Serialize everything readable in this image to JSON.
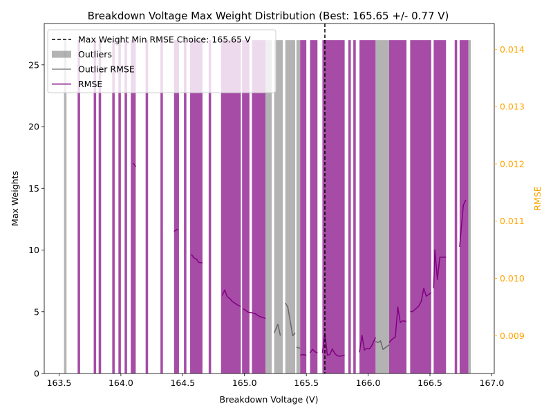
{
  "chart_data": {
    "type": "bar",
    "title": "Breakdown Voltage Max Weight Distribution (Best: 165.65 +/- 0.77 V)",
    "xlabel": "Breakdown Voltage (V)",
    "ylabel": "Max Weights",
    "y2label": "RMSE",
    "xlim": [
      163.38,
      167.02
    ],
    "ylim": [
      0,
      28.35
    ],
    "y2lim": [
      0.00834,
      0.01445
    ],
    "xticks": [
      "163.5",
      "164.0",
      "164.5",
      "165.0",
      "165.5",
      "166.0",
      "166.5",
      "167.0"
    ],
    "yticks": [
      "0",
      "5",
      "10",
      "15",
      "20",
      "25"
    ],
    "y2ticks": [
      "0.009",
      "0.010",
      "0.011",
      "0.012",
      "0.013",
      "0.014"
    ],
    "best_choice_x": 165.65,
    "colors": {
      "bars": "#800080",
      "outliers": "#808080",
      "rmse": "#800080",
      "outlier_rmse": "#666666",
      "best_line": "#000000",
      "y2_axis": "#ffa500"
    },
    "legend": {
      "placement": "top-left",
      "entries": [
        {
          "label": "Max Weight Min RMSE Choice: 165.65 V",
          "style": "dashed-line"
        },
        {
          "label": "Outliers",
          "style": "gray-bar"
        },
        {
          "label": "Outlier RMSE",
          "style": "gray-line"
        },
        {
          "label": "RMSE",
          "style": "purple-line"
        }
      ]
    },
    "bars_height": 27,
    "series": [
      {
        "name": "Max Weights",
        "intervals": [
          [
            163.65,
            163.67
          ],
          [
            163.78,
            163.8
          ],
          [
            163.82,
            163.84
          ],
          [
            163.93,
            163.95
          ],
          [
            163.98,
            164.0
          ],
          [
            164.03,
            164.05
          ],
          [
            164.08,
            164.12
          ],
          [
            164.2,
            164.22
          ],
          [
            164.32,
            164.34
          ],
          [
            164.43,
            164.47
          ],
          [
            164.51,
            164.53
          ],
          [
            164.56,
            164.66
          ],
          [
            164.71,
            164.73
          ],
          [
            164.81,
            164.97
          ],
          [
            164.98,
            165.04
          ],
          [
            165.06,
            165.17
          ],
          [
            165.45,
            165.5
          ],
          [
            165.53,
            165.59
          ],
          [
            165.63,
            165.81
          ],
          [
            165.84,
            165.86
          ],
          [
            165.88,
            165.9
          ],
          [
            165.93,
            166.06
          ],
          [
            166.17,
            166.31
          ],
          [
            166.34,
            166.51
          ],
          [
            166.53,
            166.63
          ],
          [
            166.7,
            166.72
          ],
          [
            166.74,
            166.81
          ]
        ]
      },
      {
        "name": "Outliers",
        "intervals": [
          [
            163.54,
            163.56
          ],
          [
            165.17,
            165.22
          ],
          [
            165.24,
            165.31
          ],
          [
            165.33,
            165.41
          ],
          [
            165.42,
            165.45
          ],
          [
            166.06,
            166.17
          ],
          [
            166.81,
            166.83
          ]
        ]
      },
      {
        "name": "RMSE",
        "segments": [
          [
            [
              164.1,
              0.01201
            ],
            [
              164.12,
              0.01195
            ]
          ],
          [
            [
              164.43,
              0.01082
            ],
            [
              164.46,
              0.01086
            ]
          ],
          [
            [
              164.57,
              0.01042
            ],
            [
              164.59,
              0.01036
            ],
            [
              164.61,
              0.01034
            ],
            [
              164.63,
              0.01028
            ],
            [
              164.66,
              0.01027
            ]
          ],
          [
            [
              164.82,
              0.0097
            ],
            [
              164.84,
              0.0098
            ],
            [
              164.86,
              0.00968
            ],
            [
              164.88,
              0.00965
            ],
            [
              164.9,
              0.0096
            ],
            [
              164.92,
              0.00957
            ],
            [
              164.94,
              0.00954
            ],
            [
              164.97,
              0.00951
            ]
          ],
          [
            [
              164.99,
              0.00947
            ],
            [
              165.01,
              0.00944
            ],
            [
              165.03,
              0.00941
            ],
            [
              165.06,
              0.0094
            ],
            [
              165.09,
              0.00938
            ],
            [
              165.11,
              0.00935
            ],
            [
              165.13,
              0.00933
            ],
            [
              165.17,
              0.0093
            ]
          ],
          [
            [
              165.45,
              0.00866
            ],
            [
              165.47,
              0.00867
            ],
            [
              165.5,
              0.00866
            ]
          ],
          [
            [
              165.53,
              0.0087
            ],
            [
              165.55,
              0.00876
            ],
            [
              165.57,
              0.00872
            ],
            [
              165.59,
              0.0087
            ]
          ],
          [
            [
              165.63,
              0.0087
            ],
            [
              165.65,
              0.00904
            ],
            [
              165.67,
              0.00866
            ],
            [
              165.69,
              0.00867
            ],
            [
              165.71,
              0.00877
            ],
            [
              165.73,
              0.00869
            ],
            [
              165.75,
              0.00865
            ],
            [
              165.77,
              0.00864
            ],
            [
              165.79,
              0.00865
            ],
            [
              165.81,
              0.00866
            ]
          ],
          [
            [
              165.93,
              0.00871
            ],
            [
              165.95,
              0.00901
            ],
            [
              165.97,
              0.00875
            ],
            [
              165.99,
              0.00878
            ],
            [
              166.01,
              0.00877
            ],
            [
              166.03,
              0.00883
            ],
            [
              166.06,
              0.00897
            ]
          ],
          [
            [
              166.17,
              0.00888
            ],
            [
              166.19,
              0.00893
            ],
            [
              166.22,
              0.00898
            ],
            [
              166.24,
              0.0095
            ],
            [
              166.26,
              0.00923
            ],
            [
              166.28,
              0.00926
            ],
            [
              166.31,
              0.00925
            ]
          ],
          [
            [
              166.34,
              0.00942
            ],
            [
              166.36,
              0.00942
            ],
            [
              166.38,
              0.00946
            ],
            [
              166.41,
              0.00952
            ],
            [
              166.43,
              0.0096
            ],
            [
              166.45,
              0.00983
            ],
            [
              166.47,
              0.00969
            ],
            [
              166.51,
              0.00975
            ]
          ],
          [
            [
              166.53,
              0.00983
            ],
            [
              166.54,
              0.0105
            ],
            [
              166.56,
              0.00998
            ],
            [
              166.58,
              0.01037
            ],
            [
              166.63,
              0.01037
            ]
          ],
          [
            [
              166.74,
              0.01055
            ],
            [
              166.77,
              0.01128
            ],
            [
              166.79,
              0.01137
            ]
          ]
        ]
      },
      {
        "name": "Outlier RMSE",
        "segments": [
          [
            [
              165.17,
              0.0093
            ]
          ],
          [
            [
              165.24,
              0.00905
            ],
            [
              165.27,
              0.0092
            ],
            [
              165.29,
              0.009
            ]
          ],
          [
            [
              165.33,
              0.00957
            ],
            [
              165.35,
              0.0095
            ],
            [
              165.37,
              0.00925
            ],
            [
              165.39,
              0.009
            ],
            [
              165.41,
              0.00905
            ]
          ],
          [
            [
              165.42,
              0.0088
            ],
            [
              165.45,
              0.00878
            ]
          ],
          [
            [
              166.06,
              0.0089
            ],
            [
              166.08,
              0.00888
            ],
            [
              166.1,
              0.00891
            ],
            [
              166.12,
              0.00876
            ],
            [
              166.17,
              0.00884
            ]
          ]
        ]
      }
    ]
  }
}
